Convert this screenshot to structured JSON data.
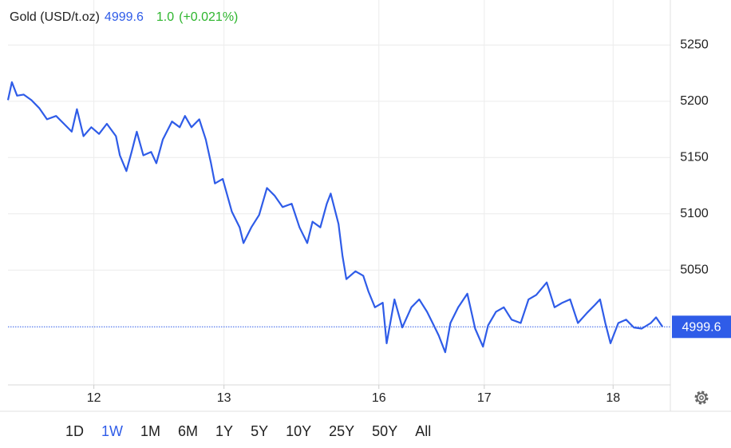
{
  "chart_data": {
    "type": "line",
    "title": "Gold (USD/t.oz)",
    "change": "1.0",
    "change_pct": "(+0.021%)",
    "x": [
      -0.66,
      -0.63,
      -0.59,
      -0.54,
      -0.48,
      -0.42,
      -0.36,
      -0.29,
      -0.23,
      -0.17,
      -0.13,
      -0.08,
      -0.02,
      0.04,
      0.1,
      0.17,
      0.2,
      0.25,
      0.29,
      0.33,
      0.38,
      0.44,
      0.48,
      0.53,
      0.6,
      0.66,
      0.7,
      0.75,
      0.81,
      0.86,
      0.9,
      0.93,
      0.99,
      1.06,
      1.12,
      1.15,
      1.21,
      1.27,
      1.33,
      1.39,
      1.45,
      1.52,
      1.58,
      1.64,
      1.68,
      1.74,
      1.79,
      1.82,
      1.88,
      1.91,
      1.94,
      2.01,
      2.07,
      2.11,
      2.16,
      2.22,
      2.25,
      2.31,
      2.37,
      2.44,
      2.5,
      2.56,
      2.62,
      2.65,
      2.7,
      2.74,
      2.8,
      2.87,
      2.93,
      2.99,
      3.03,
      3.09,
      3.15,
      3.21,
      3.28,
      3.34,
      3.4,
      3.48,
      3.54,
      3.6,
      3.66,
      3.72,
      3.79,
      3.85,
      3.89,
      3.93,
      3.97,
      4.03,
      4.09,
      4.15,
      4.21,
      4.28,
      4.32,
      4.37
    ],
    "series": [
      {
        "name": "Gold",
        "color": "#2f5ce8",
        "values": [
          5201,
          5217,
          5205,
          5206,
          5201,
          5194,
          5184,
          5187,
          5180,
          5173,
          5193,
          5169,
          5177,
          5171,
          5180,
          5169,
          5152,
          5138,
          5155,
          5173,
          5152,
          5155,
          5145,
          5166,
          5182,
          5177,
          5187,
          5177,
          5184,
          5166,
          5145,
          5127,
          5131,
          5102,
          5088,
          5074,
          5088,
          5099,
          5123,
          5116,
          5106,
          5109,
          5088,
          5074,
          5093,
          5088,
          5109,
          5118,
          5091,
          5063,
          5042,
          5049,
          5045,
          5031,
          5017,
          5021,
          4985,
          5024,
          4999,
          5017,
          5024,
          5013,
          4999,
          4992,
          4977,
          5003,
          5017,
          5029,
          4998,
          4982,
          5001,
          5013,
          5017,
          5006,
          5003,
          5024,
          5028,
          5039,
          5017,
          5021,
          5024,
          5003,
          5012,
          5019,
          5024,
          5003,
          4985,
          5003,
          5006,
          4999,
          4998,
          5003,
          5008,
          4999.6
        ]
      }
    ],
    "xlim": [
      -0.66,
      4.43
    ],
    "xticks": [
      {
        "value": 0,
        "label": "12"
      },
      {
        "value": 1,
        "label": "13"
      },
      {
        "value": 2.19,
        "label": "16"
      },
      {
        "value": 3,
        "label": "17"
      },
      {
        "value": 3.99,
        "label": "18"
      }
    ],
    "ylim": [
      4948,
      5290
    ],
    "yticks": [
      5050,
      5100,
      5150,
      5200,
      5250
    ],
    "grid": true,
    "ranges": [
      "1D",
      "1W",
      "1M",
      "6M",
      "1Y",
      "5Y",
      "10Y",
      "25Y",
      "50Y",
      "All"
    ],
    "active_range": "1W"
  }
}
